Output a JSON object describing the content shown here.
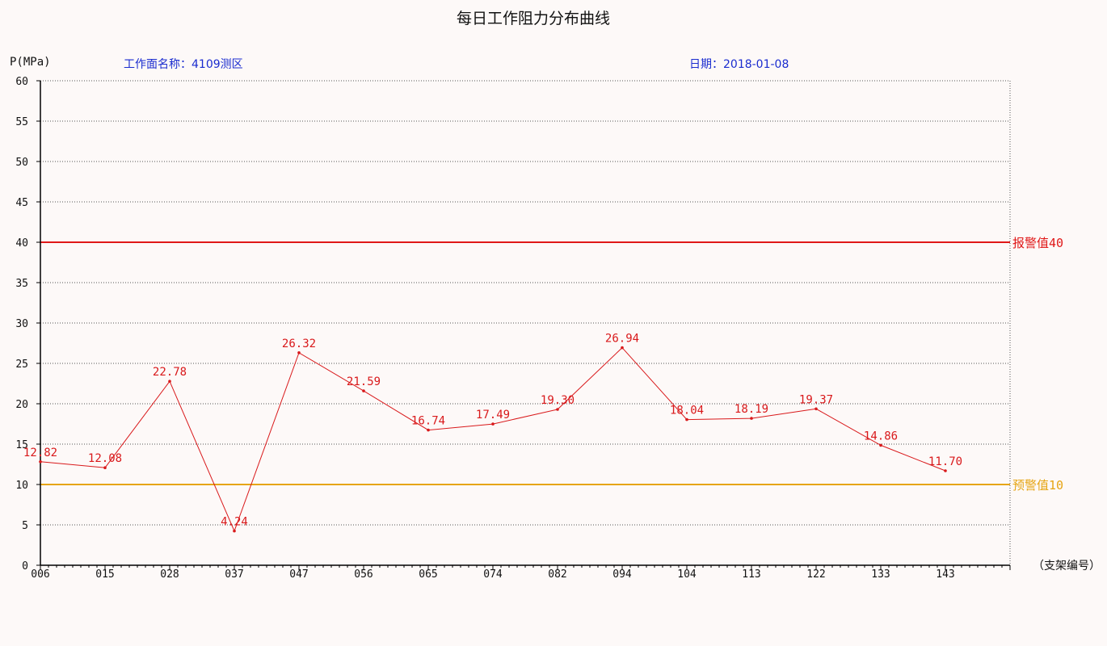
{
  "header": {
    "title": "每日工作阻力分布曲线",
    "y_unit": "P(MPa)",
    "face_label": "工作面名称：",
    "face_value": "4109测区",
    "date_label": "日期：",
    "date_value": "2018-01-08",
    "x_axis_label": "（支架编号）"
  },
  "chart_data": {
    "type": "line",
    "title": "每日工作阻力分布曲线",
    "ylabel": "P(MPa)",
    "xlabel": "（支架编号）",
    "ylim": [
      0,
      60
    ],
    "yticks": [
      0,
      5,
      10,
      15,
      20,
      25,
      30,
      35,
      40,
      45,
      50,
      55,
      60
    ],
    "grid": true,
    "categories": [
      "006",
      "015",
      "028",
      "037",
      "047",
      "056",
      "065",
      "074",
      "082",
      "094",
      "104",
      "113",
      "122",
      "133",
      "143"
    ],
    "series": [
      {
        "values": [
          12.82,
          12.08,
          22.78,
          4.24,
          26.32,
          21.59,
          16.74,
          17.49,
          19.3,
          26.94,
          18.04,
          18.19,
          19.37,
          14.86,
          11.7
        ],
        "labels": [
          "12.82",
          "12.08",
          "22.78",
          "4.24",
          "26.32",
          "21.59",
          "16.74",
          "17.49",
          "19.30",
          "26.94",
          "18.04",
          "18.19",
          "19.37",
          "14.86",
          "11.70"
        ],
        "color": "#d9191b"
      }
    ],
    "thresholds": [
      {
        "label": "报警值40",
        "value": 40,
        "color": "#e01818"
      },
      {
        "label": "预警值10",
        "value": 10,
        "color": "#e6a514"
      }
    ]
  }
}
